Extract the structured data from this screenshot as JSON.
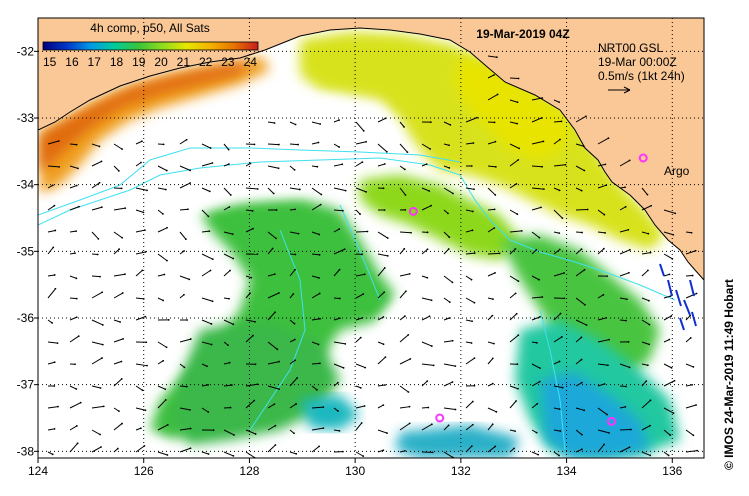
{
  "colorbar": {
    "title": "4h comp, p50, All Sats",
    "ticks": [
      "15",
      "16",
      "17",
      "18",
      "19",
      "20",
      "21",
      "22",
      "23",
      "24"
    ],
    "colors": [
      "#00007f",
      "#0037c8",
      "#0099e6",
      "#00cc99",
      "#3ac43a",
      "#8edc1e",
      "#e6e600",
      "#f2b300",
      "#e67300",
      "#c81e1e"
    ]
  },
  "map": {
    "timestamp": "19-Mar-2019 04Z",
    "current_ref": {
      "line1": "NRT00 GSL",
      "line2": "19-Mar 00:00Z",
      "line3": "0.5m/s (1kt 24h)"
    },
    "argo_label": "Argo",
    "argo_color": "#ff33ff",
    "land_color": "#fac896",
    "coast_color": "#000000",
    "contour_color": "#40e0f0",
    "x_ticks": [
      "124",
      "126",
      "128",
      "130",
      "132",
      "134",
      "136"
    ],
    "y_ticks": [
      "-32",
      "-33",
      "-34",
      "-35",
      "-36",
      "-37",
      "-38"
    ],
    "lon_range": [
      124,
      136.6
    ],
    "lat_range": [
      -31.5,
      -38.1
    ],
    "argo_floats": [
      {
        "lon": 131.1,
        "lat": -34.4
      },
      {
        "lon": 131.6,
        "lat": -37.5
      },
      {
        "lon": 134.85,
        "lat": -37.55
      },
      {
        "lon": 135.45,
        "lat": -33.6
      }
    ]
  },
  "credit": "© IMOS 24-Mar-2019 11:49 Hobart"
}
